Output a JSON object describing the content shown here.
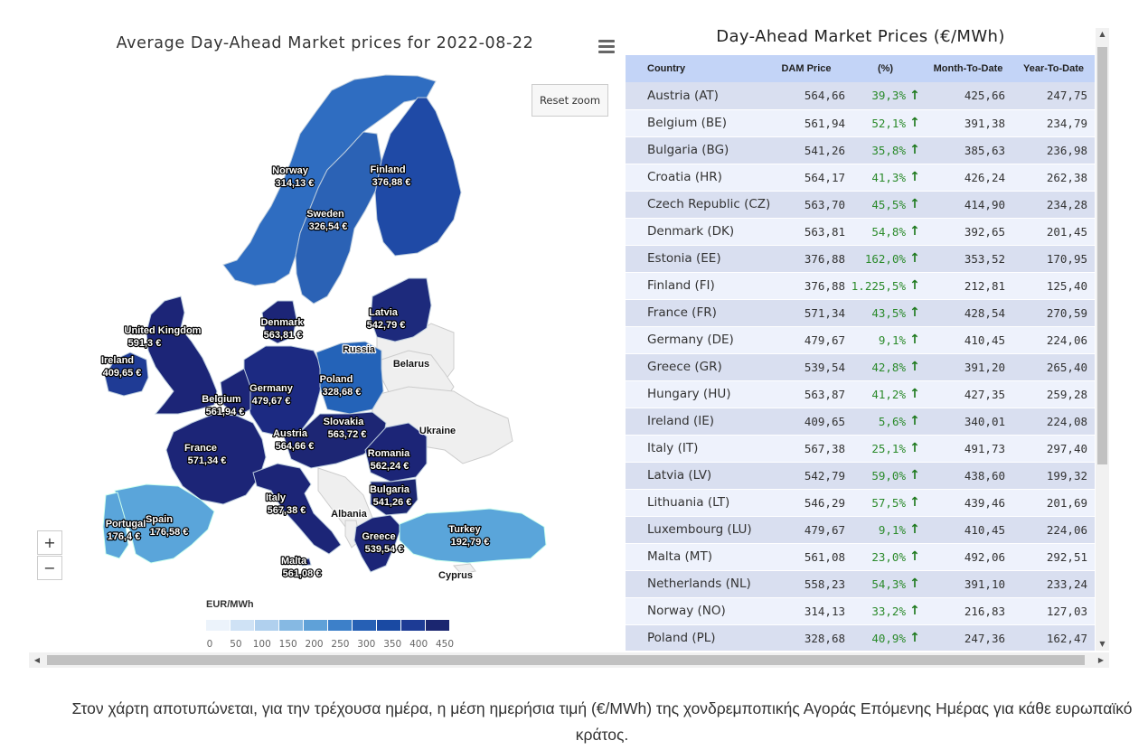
{
  "map": {
    "title": "Average Day-Ahead Market prices for 2022-08-22",
    "reset_zoom_label": "Reset zoom",
    "zoom_in_label": "+",
    "zoom_out_label": "−",
    "menu_icon": "hamburger-menu-icon",
    "legend": {
      "title": "EUR/MWh",
      "ticks": [
        "0",
        "50",
        "100",
        "150",
        "200",
        "250",
        "300",
        "350",
        "400",
        "450"
      ],
      "colors": [
        "#ecf3fb",
        "#cfe2f5",
        "#b0d0ee",
        "#86b9e3",
        "#5fa1d8",
        "#3d80c9",
        "#2660b5",
        "#1a4aa3",
        "#1d3b95",
        "#1b2670"
      ]
    },
    "countries": [
      {
        "name": "Norway",
        "value": "314,13 €"
      },
      {
        "name": "Finland",
        "value": "376,88 €"
      },
      {
        "name": "Sweden",
        "value": "326,54 €"
      },
      {
        "name": "Latvia",
        "value": "542,79 €"
      },
      {
        "name": "Denmark",
        "value": "563,81 €"
      },
      {
        "name": "United Kingdom",
        "value": "591,3 €"
      },
      {
        "name": "Ireland",
        "value": "409,65 €"
      },
      {
        "name": "Poland",
        "value": "328,68 €"
      },
      {
        "name": "Germany",
        "value": "479,67 €"
      },
      {
        "name": "Belgium",
        "value": "561,94 €"
      },
      {
        "name": "Slovakia",
        "value": "563,72 €"
      },
      {
        "name": "Austria",
        "value": "564,66 €"
      },
      {
        "name": "France",
        "value": "571,34 €"
      },
      {
        "name": "Romania",
        "value": "562,24 €"
      },
      {
        "name": "Bulgaria",
        "value": "541,26 €"
      },
      {
        "name": "Italy",
        "value": "567,38 €"
      },
      {
        "name": "Portugal",
        "value": "176,4 €"
      },
      {
        "name": "Spain",
        "value": "176,58 €"
      },
      {
        "name": "Turkey",
        "value": "192,79 €"
      },
      {
        "name": "Greece",
        "value": "539,54 €"
      },
      {
        "name": "Malta",
        "value": "561,08 €"
      }
    ],
    "unlabeled_countries": [
      "Russia",
      "Belarus",
      "Ukraine",
      "Albania",
      "Cyprus"
    ]
  },
  "table": {
    "title": "Day-Ahead Market Prices (€/MWh)",
    "headers": [
      "Country",
      "DAM Price",
      "(%)",
      "Month-To-Date",
      "Year-To-Date"
    ],
    "trend_icon": "arrow-up-icon",
    "rows": [
      {
        "country": "Austria (AT)",
        "dam": "564,66",
        "pct": "39,3%",
        "mtd": "425,66",
        "ytd": "247,75"
      },
      {
        "country": "Belgium (BE)",
        "dam": "561,94",
        "pct": "52,1%",
        "mtd": "391,38",
        "ytd": "234,79"
      },
      {
        "country": "Bulgaria (BG)",
        "dam": "541,26",
        "pct": "35,8%",
        "mtd": "385,63",
        "ytd": "236,98"
      },
      {
        "country": "Croatia (HR)",
        "dam": "564,17",
        "pct": "41,3%",
        "mtd": "426,24",
        "ytd": "262,38"
      },
      {
        "country": "Czech Republic (CZ)",
        "dam": "563,70",
        "pct": "45,5%",
        "mtd": "414,90",
        "ytd": "234,28"
      },
      {
        "country": "Denmark (DK)",
        "dam": "563,81",
        "pct": "54,8%",
        "mtd": "392,65",
        "ytd": "201,45"
      },
      {
        "country": "Estonia (EE)",
        "dam": "376,88",
        "pct": "162,0%",
        "mtd": "353,52",
        "ytd": "170,95"
      },
      {
        "country": "Finland (FI)",
        "dam": "376,88",
        "pct": "1.225,5%",
        "mtd": "212,81",
        "ytd": "125,40"
      },
      {
        "country": "France (FR)",
        "dam": "571,34",
        "pct": "43,5%",
        "mtd": "428,54",
        "ytd": "270,59"
      },
      {
        "country": "Germany (DE)",
        "dam": "479,67",
        "pct": "9,1%",
        "mtd": "410,45",
        "ytd": "224,06"
      },
      {
        "country": "Greece (GR)",
        "dam": "539,54",
        "pct": "42,8%",
        "mtd": "391,20",
        "ytd": "265,40"
      },
      {
        "country": "Hungary (HU)",
        "dam": "563,87",
        "pct": "41,2%",
        "mtd": "427,35",
        "ytd": "259,28"
      },
      {
        "country": "Ireland (IE)",
        "dam": "409,65",
        "pct": "5,6%",
        "mtd": "340,01",
        "ytd": "224,08"
      },
      {
        "country": "Italy (IT)",
        "dam": "567,38",
        "pct": "25,1%",
        "mtd": "491,73",
        "ytd": "297,40"
      },
      {
        "country": "Latvia (LV)",
        "dam": "542,79",
        "pct": "59,0%",
        "mtd": "438,60",
        "ytd": "199,32"
      },
      {
        "country": "Lithuania (LT)",
        "dam": "546,29",
        "pct": "57,5%",
        "mtd": "439,46",
        "ytd": "201,69"
      },
      {
        "country": "Luxembourg (LU)",
        "dam": "479,67",
        "pct": "9,1%",
        "mtd": "410,45",
        "ytd": "224,06"
      },
      {
        "country": "Malta (MT)",
        "dam": "561,08",
        "pct": "23,0%",
        "mtd": "492,06",
        "ytd": "292,51"
      },
      {
        "country": "Netherlands (NL)",
        "dam": "558,23",
        "pct": "54,3%",
        "mtd": "391,10",
        "ytd": "233,24"
      },
      {
        "country": "Norway (NO)",
        "dam": "314,13",
        "pct": "33,2%",
        "mtd": "216,83",
        "ytd": "127,03"
      },
      {
        "country": "Poland (PL)",
        "dam": "328,68",
        "pct": "40,9%",
        "mtd": "247,36",
        "ytd": "162,47"
      }
    ]
  },
  "caption": "Στον χάρτη αποτυπώνεται, για την τρέχουσα ημέρα, η μέση ημερήσια τιμή (€/MWh) της χονδρεμποπικής Αγοράς Επόμενης Ημέρας για κάθε ευρωπαϊκό κράτος."
}
